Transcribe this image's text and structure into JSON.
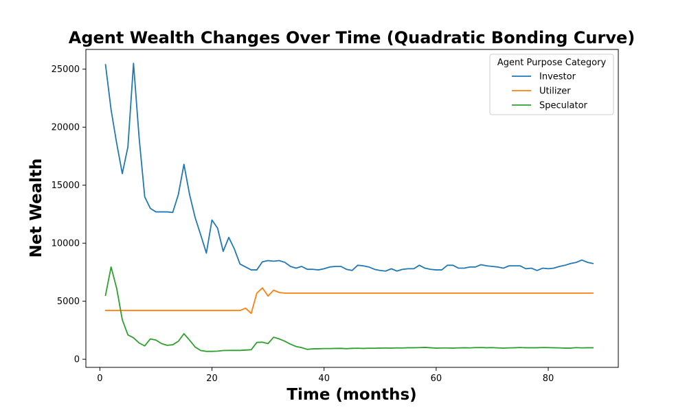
{
  "chart_data": {
    "type": "line",
    "title": "Agent Wealth Changes Over Time (Quadratic Bonding Curve)",
    "xlabel": "Time (months)",
    "ylabel": "Net Wealth",
    "xlim": [
      -2.5,
      92.5
    ],
    "ylim": [
      -700,
      26700
    ],
    "xticks": [
      0,
      20,
      40,
      60,
      80
    ],
    "yticks": [
      0,
      5000,
      10000,
      15000,
      20000,
      25000
    ],
    "legend_title": "Agent Purpose Category",
    "legend_position": "top-right",
    "grid": false,
    "series": [
      {
        "name": "Investor",
        "color": "#1f77b4",
        "x": [
          1,
          2,
          3,
          4,
          5,
          6,
          7,
          8,
          9,
          10,
          11,
          12,
          13,
          14,
          15,
          16,
          17,
          18,
          19,
          20,
          21,
          22,
          23,
          24,
          25,
          26,
          27,
          28,
          29,
          30,
          31,
          32,
          33,
          34,
          35,
          36,
          37,
          38,
          39,
          40,
          41,
          42,
          43,
          44,
          45,
          46,
          47,
          48,
          49,
          50,
          51,
          52,
          53,
          54,
          55,
          56,
          57,
          58,
          59,
          60,
          61,
          62,
          63,
          64,
          65,
          66,
          67,
          68,
          69,
          70,
          71,
          72,
          73,
          74,
          75,
          76,
          77,
          78,
          79,
          80,
          81,
          82,
          83,
          84,
          85,
          86,
          87,
          88
        ],
        "values": [
          25400,
          21500,
          18600,
          16000,
          18300,
          25500,
          19100,
          14000,
          13000,
          12700,
          12700,
          12700,
          12650,
          14200,
          16800,
          14200,
          12200,
          10700,
          9150,
          12000,
          11300,
          9300,
          10500,
          9500,
          8200,
          7950,
          7700,
          7700,
          8400,
          8500,
          8450,
          8500,
          8350,
          8000,
          7850,
          8000,
          7750,
          7750,
          7700,
          7800,
          7950,
          8000,
          8000,
          7750,
          7650,
          8100,
          8050,
          7950,
          7750,
          7650,
          7600,
          7800,
          7600,
          7750,
          7800,
          7800,
          8100,
          7850,
          7750,
          7700,
          7700,
          8100,
          8100,
          7850,
          7850,
          7950,
          7950,
          8150,
          8050,
          8000,
          7950,
          7850,
          8050,
          8050,
          8050,
          7800,
          7850,
          7650,
          7850,
          7800,
          7850,
          8000,
          8100,
          8250,
          8350,
          8550,
          8350,
          8250
        ]
      },
      {
        "name": "Utilizer",
        "color": "#ff7f0e",
        "x": [
          1,
          2,
          3,
          4,
          5,
          6,
          7,
          8,
          9,
          10,
          11,
          12,
          13,
          14,
          15,
          16,
          17,
          18,
          19,
          20,
          21,
          22,
          23,
          24,
          25,
          26,
          27,
          28,
          29,
          30,
          31,
          32,
          33,
          34,
          35,
          36,
          37,
          38,
          39,
          40,
          41,
          42,
          43,
          44,
          45,
          46,
          47,
          48,
          49,
          50,
          51,
          52,
          53,
          54,
          55,
          56,
          57,
          58,
          59,
          60,
          61,
          62,
          63,
          64,
          65,
          66,
          67,
          68,
          69,
          70,
          71,
          72,
          73,
          74,
          75,
          76,
          77,
          78,
          79,
          80,
          81,
          82,
          83,
          84,
          85,
          86,
          87,
          88
        ],
        "values": [
          4200,
          4200,
          4200,
          4200,
          4200,
          4200,
          4200,
          4200,
          4200,
          4200,
          4200,
          4200,
          4200,
          4200,
          4200,
          4200,
          4200,
          4200,
          4200,
          4200,
          4200,
          4200,
          4200,
          4200,
          4200,
          4400,
          3950,
          5700,
          6150,
          5450,
          5950,
          5750,
          5700,
          5700,
          5700,
          5700,
          5700,
          5700,
          5700,
          5700,
          5700,
          5700,
          5700,
          5700,
          5700,
          5700,
          5700,
          5700,
          5700,
          5700,
          5700,
          5700,
          5700,
          5700,
          5700,
          5700,
          5700,
          5700,
          5700,
          5700,
          5700,
          5700,
          5700,
          5700,
          5700,
          5700,
          5700,
          5700,
          5700,
          5700,
          5700,
          5700,
          5700,
          5700,
          5700,
          5700,
          5700,
          5700,
          5700,
          5700,
          5700,
          5700,
          5700,
          5700,
          5700,
          5700,
          5700,
          5700
        ]
      },
      {
        "name": "Speculator",
        "color": "#2ca02c",
        "x": [
          1,
          2,
          3,
          4,
          5,
          6,
          7,
          8,
          9,
          10,
          11,
          12,
          13,
          14,
          15,
          16,
          17,
          18,
          19,
          20,
          21,
          22,
          23,
          24,
          25,
          26,
          27,
          28,
          29,
          30,
          31,
          32,
          33,
          34,
          35,
          36,
          37,
          38,
          39,
          40,
          41,
          42,
          43,
          44,
          45,
          46,
          47,
          48,
          49,
          50,
          51,
          52,
          53,
          54,
          55,
          56,
          57,
          58,
          59,
          60,
          61,
          62,
          63,
          64,
          65,
          66,
          67,
          68,
          69,
          70,
          71,
          72,
          73,
          74,
          75,
          76,
          77,
          78,
          79,
          80,
          81,
          82,
          83,
          84,
          85,
          86,
          87,
          88
        ],
        "values": [
          5500,
          7950,
          6100,
          3400,
          2100,
          1850,
          1400,
          1150,
          1750,
          1650,
          1350,
          1200,
          1250,
          1550,
          2200,
          1650,
          1050,
          750,
          680,
          680,
          700,
          750,
          760,
          760,
          760,
          790,
          820,
          1450,
          1470,
          1350,
          1900,
          1750,
          1550,
          1300,
          1100,
          1000,
          850,
          900,
          900,
          920,
          920,
          930,
          940,
          910,
          940,
          950,
          930,
          950,
          950,
          960,
          970,
          960,
          980,
          970,
          990,
          990,
          1000,
          1020,
          990,
          960,
          970,
          970,
          960,
          980,
          990,
          980,
          1000,
          1010,
          990,
          1000,
          980,
          960,
          980,
          990,
          1010,
          990,
          990,
          990,
          1010,
          1000,
          990,
          980,
          960,
          960,
          1000,
          980,
          990,
          990
        ]
      }
    ]
  }
}
